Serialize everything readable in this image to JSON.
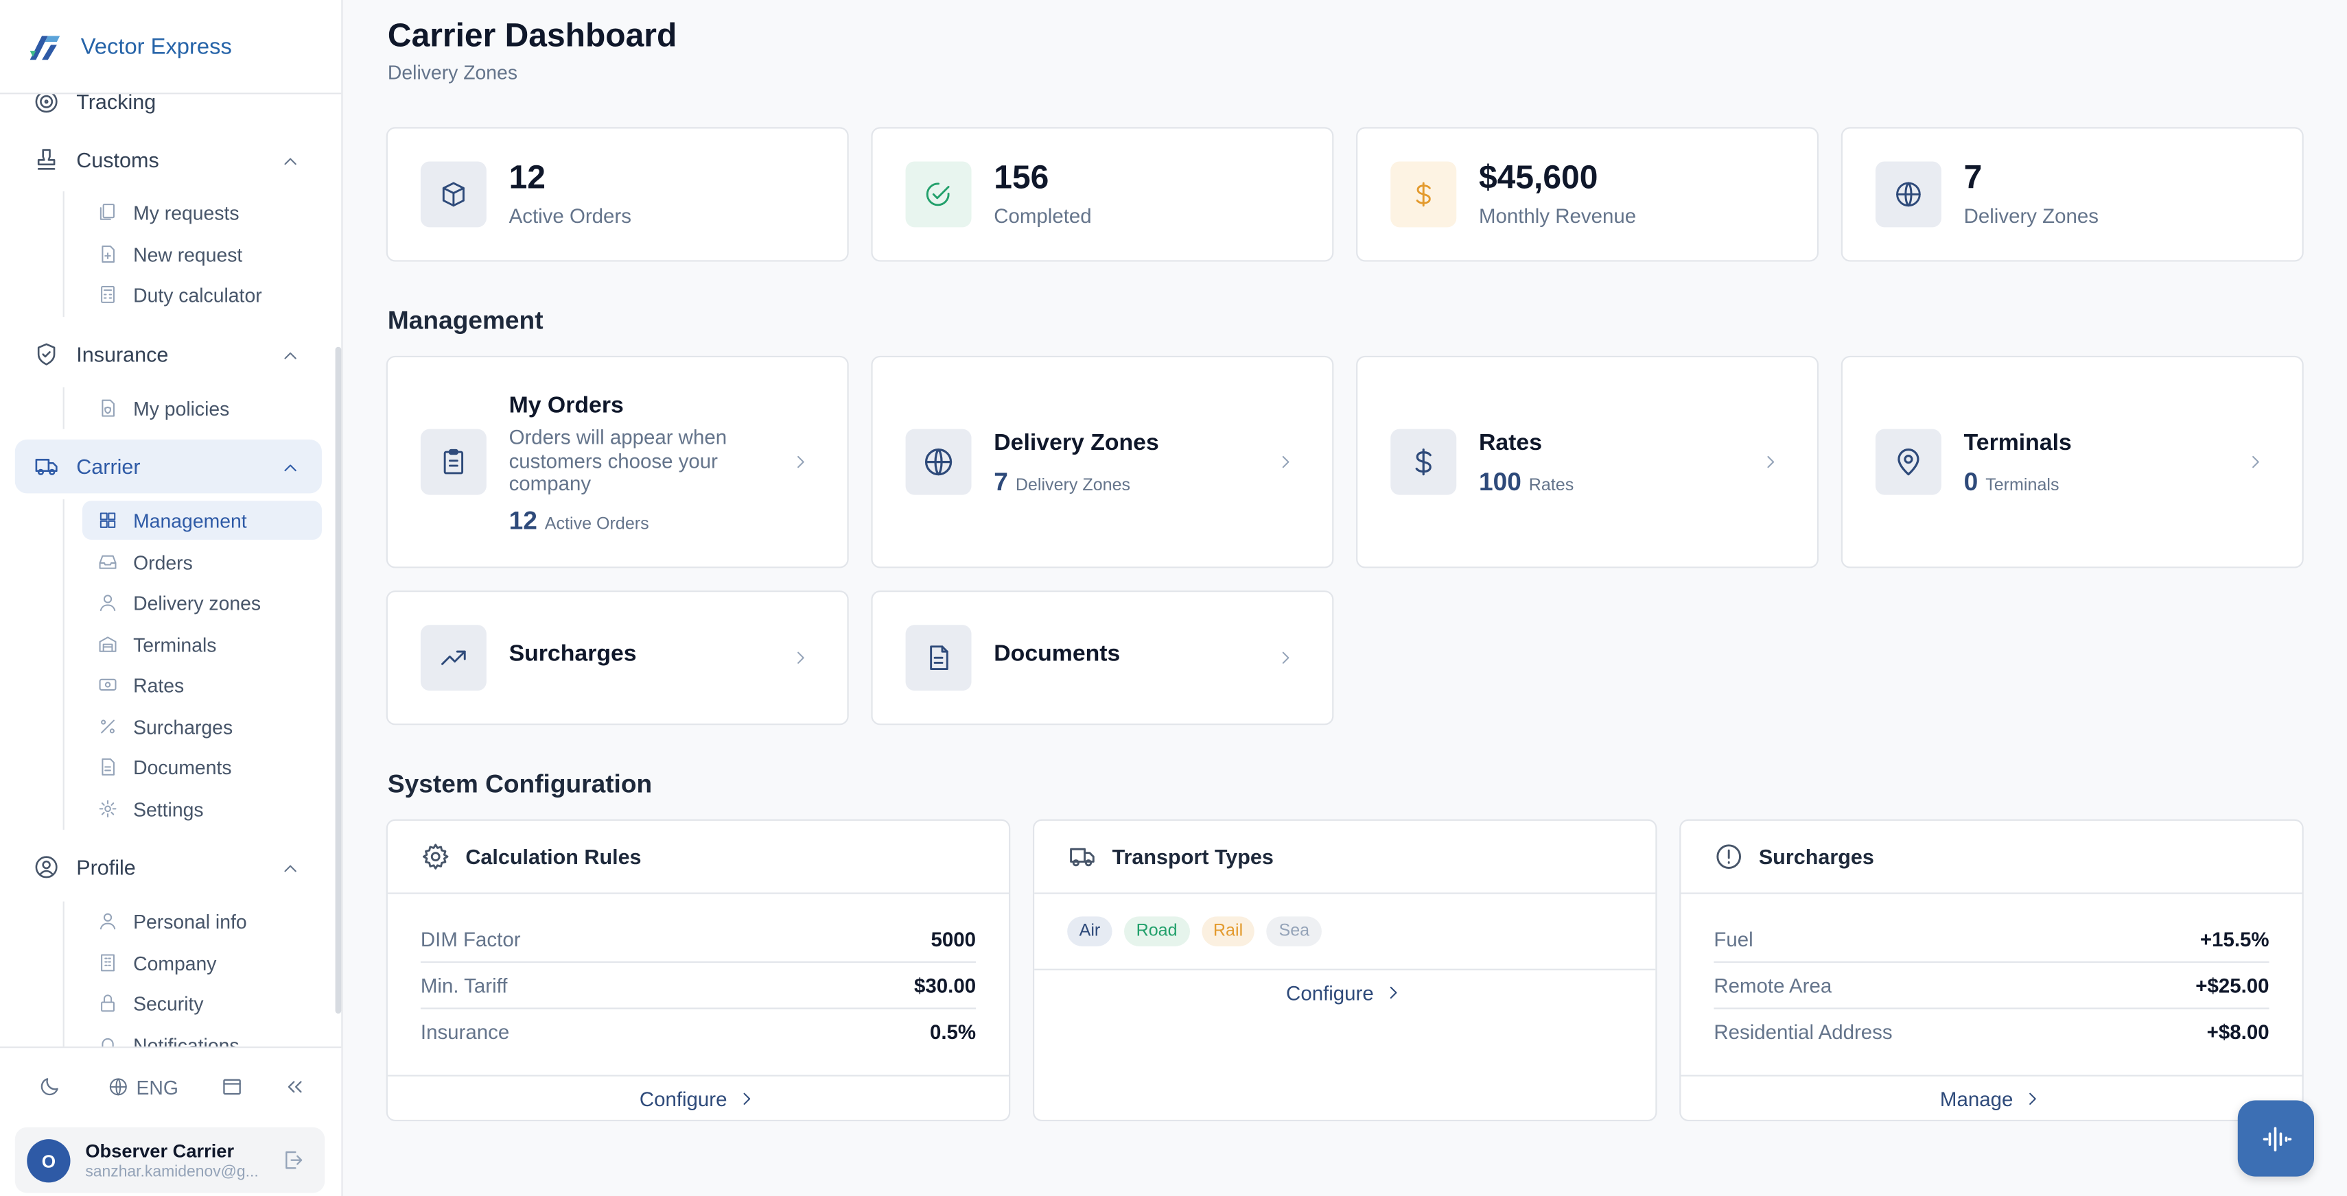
{
  "brand": {
    "name": "Vector Express"
  },
  "sidebar": {
    "tracking": {
      "label": "Tracking"
    },
    "customs": {
      "label": "Customs",
      "items": [
        "My requests",
        "New request",
        "Duty calculator"
      ]
    },
    "insurance": {
      "label": "Insurance",
      "items": [
        "My policies"
      ]
    },
    "carrier": {
      "label": "Carrier",
      "items": [
        "Management",
        "Orders",
        "Delivery zones",
        "Terminals",
        "Rates",
        "Surcharges",
        "Documents",
        "Settings"
      ]
    },
    "profile": {
      "label": "Profile",
      "items": [
        "Personal info",
        "Company",
        "Security",
        "Notifications"
      ]
    },
    "bottom": {
      "language": "ENG"
    },
    "user": {
      "initial": "O",
      "name": "Observer Carrier",
      "email": "sanzhar.kamidenov@g..."
    }
  },
  "header": {
    "title": "Carrier Dashboard",
    "subtitle": "Delivery Zones"
  },
  "stats": [
    {
      "value": "12",
      "label": "Active Orders",
      "icon": "box-icon",
      "color": "#2e4a7a"
    },
    {
      "value": "156",
      "label": "Completed",
      "icon": "check-circle-icon",
      "color": "#22a06b"
    },
    {
      "value": "$45,600",
      "label": "Monthly Revenue",
      "icon": "dollar-icon",
      "color": "#e39a2d"
    },
    {
      "value": "7",
      "label": "Delivery Zones",
      "icon": "globe-icon",
      "color": "#2e4a7a"
    }
  ],
  "management": {
    "title": "Management",
    "cards": [
      {
        "title": "My Orders",
        "description": "Orders will appear when customers choose your company",
        "count": "12",
        "count_label": "Active Orders"
      },
      {
        "title": "Delivery Zones",
        "count": "7",
        "count_label": "Delivery Zones"
      },
      {
        "title": "Rates",
        "count": "100",
        "count_label": "Rates"
      },
      {
        "title": "Terminals",
        "count": "0",
        "count_label": "Terminals"
      },
      {
        "title": "Surcharges"
      },
      {
        "title": "Documents"
      }
    ]
  },
  "system": {
    "title": "System Configuration",
    "calc": {
      "title": "Calculation Rules",
      "rows": [
        {
          "label": "DIM Factor",
          "value": "5000"
        },
        {
          "label": "Min. Tariff",
          "value": "$30.00"
        },
        {
          "label": "Insurance",
          "value": "0.5%"
        }
      ],
      "action": "Configure"
    },
    "transport": {
      "title": "Transport Types",
      "tags": [
        {
          "label": "Air",
          "color": "#2e4a7a"
        },
        {
          "label": "Road",
          "color": "#22a06b"
        },
        {
          "label": "Rail",
          "color": "#e39a2d"
        },
        {
          "label": "Sea",
          "color": "#94a3b8"
        }
      ],
      "action": "Configure"
    },
    "surcharges": {
      "title": "Surcharges",
      "rows": [
        {
          "label": "Fuel",
          "value": "+15.5%"
        },
        {
          "label": "Remote Area",
          "value": "+$25.00"
        },
        {
          "label": "Residential Address",
          "value": "+$8.00"
        }
      ],
      "action": "Manage"
    }
  }
}
